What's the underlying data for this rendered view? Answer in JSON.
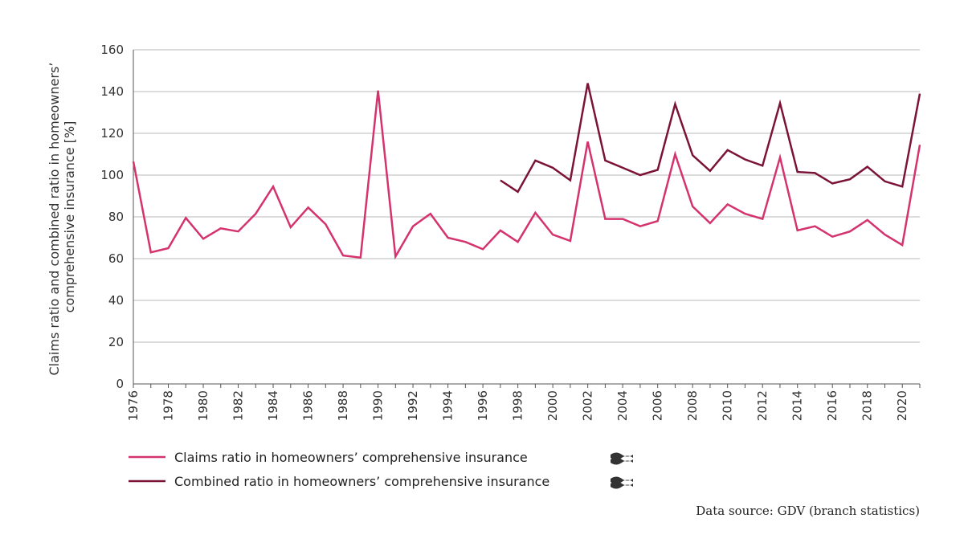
{
  "chart_data": {
    "type": "line",
    "ylabel": "Claims ratio and combined ratio in homeowners’ comprehensive insurance [%]",
    "ylabel_lines": [
      "Claims ratio and combined ratio in homeowners’",
      "comprehensive insurance [%]"
    ],
    "xlabel": "",
    "ylim": [
      0,
      160
    ],
    "yticks": [
      0,
      20,
      40,
      60,
      80,
      100,
      120,
      140,
      160
    ],
    "xlim": [
      1976,
      2021
    ],
    "xticks": [
      1976,
      1978,
      1980,
      1982,
      1984,
      1986,
      1988,
      1990,
      1992,
      1994,
      1996,
      1998,
      2000,
      2002,
      2004,
      2006,
      2008,
      2010,
      2012,
      2014,
      2016,
      2018,
      2020
    ],
    "grid": "horizontal",
    "legend_position": "bottom-left",
    "series": [
      {
        "name": "Claims ratio in homeowners’ comprehensive insurance",
        "color": "#d4336e",
        "x": [
          1976,
          1977,
          1978,
          1979,
          1980,
          1981,
          1982,
          1983,
          1984,
          1985,
          1986,
          1987,
          1988,
          1989,
          1990,
          1991,
          1992,
          1993,
          1994,
          1995,
          1996,
          1997,
          1998,
          1999,
          2000,
          2001,
          2002,
          2003,
          2004,
          2005,
          2006,
          2007,
          2008,
          2009,
          2010,
          2011,
          2012,
          2013,
          2014,
          2015,
          2016,
          2017,
          2018,
          2019,
          2020,
          2021
        ],
        "values": [
          106.5,
          63,
          65,
          79.5,
          69.5,
          74.5,
          73,
          81.5,
          94.5,
          75,
          84.5,
          76.5,
          61.5,
          60.5,
          140.5,
          61,
          75.5,
          81.5,
          70,
          68,
          64.5,
          73.5,
          68,
          82,
          71.5,
          68.5,
          116,
          79,
          79,
          75.5,
          78,
          110,
          85,
          77,
          86,
          81.5,
          79,
          108.5,
          73.5,
          75.5,
          70.5,
          73,
          78.5,
          71.5,
          66.5,
          114.5
        ]
      },
      {
        "name": "Combined ratio in homeowners’ comprehensive insurance",
        "color": "#7b1238",
        "x": [
          1997,
          1998,
          1999,
          2000,
          2001,
          2002,
          2003,
          2004,
          2005,
          2006,
          2007,
          2008,
          2009,
          2010,
          2011,
          2012,
          2013,
          2014,
          2015,
          2016,
          2017,
          2018,
          2019,
          2020,
          2021
        ],
        "values": [
          97.5,
          92,
          107,
          103.5,
          97.5,
          144,
          107,
          103.5,
          100,
          102.5,
          134,
          109.5,
          102,
          112,
          107.5,
          104.5,
          134.5,
          101.5,
          101,
          96,
          98,
          104,
          97,
          94.5,
          139
        ]
      }
    ],
    "legend_icon": "wavy-approx-icon",
    "source": "Data source: GDV (branch statistics)"
  }
}
